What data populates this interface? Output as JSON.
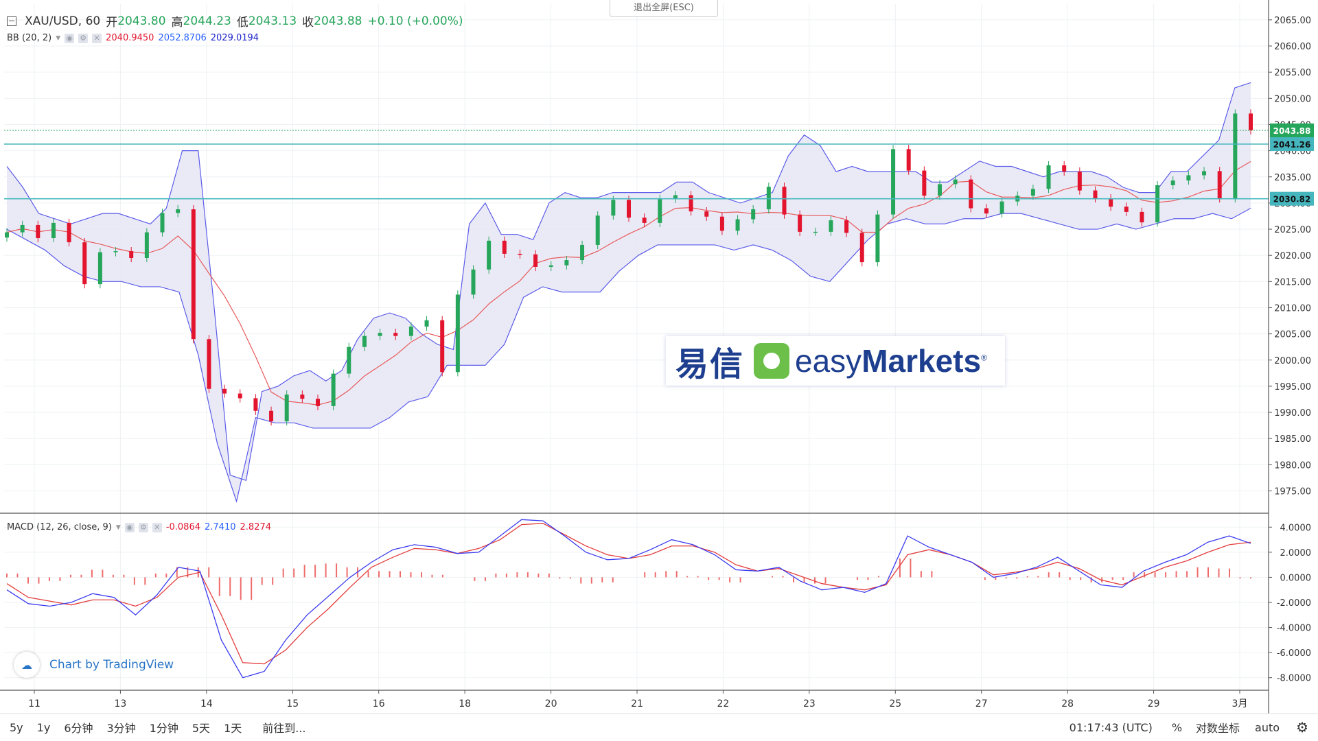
{
  "symbol": "XAU/USD, 60",
  "ohlc": {
    "open_label": "开",
    "open": "2043.80",
    "high_label": "高",
    "high": "2044.23",
    "low_label": "低",
    "low": "2043.13",
    "close_label": "收",
    "close": "2043.88",
    "change": "+0.10 (+0.00%)"
  },
  "bb": {
    "label": "BB (20, 2)",
    "basis": "2040.9450",
    "upper": "2052.8706",
    "lower": "2029.0194"
  },
  "macd": {
    "label": "MACD (12, 26, close, 9)",
    "hist": "-0.0864",
    "macd": "2.7410",
    "signal": "2.8274"
  },
  "esc_button": "退出全屏(ESC)",
  "logo": {
    "cn": "易信",
    "en_light": "easy",
    "en_bold": "Markets",
    "reg": "®"
  },
  "brand": "Chart by TradingView",
  "bottom": {
    "timeframes": [
      "5y",
      "1y",
      "6分钟",
      "3分钟",
      "1分钟",
      "5天",
      "1天"
    ],
    "goto": "前往到...",
    "time": "01:17:43 (UTC)",
    "percent": "%",
    "log": "对数坐标",
    "auto": "auto"
  },
  "colors": {
    "up": "#26a65b",
    "down": "#e3152e",
    "band_fill": "#e6e6f6",
    "band_line": "#5b5bea",
    "basis_line": "#e85a5a",
    "hline": "#46b6be",
    "macd_line": "#3b3bf0",
    "signal_line": "#e33b3b"
  },
  "chart_data": [
    {
      "type": "candlestick",
      "title": "XAU/USD, 60",
      "x_ticks": [
        "11",
        "13",
        "14",
        "15",
        "16",
        "18",
        "20",
        "21",
        "22",
        "23",
        "25",
        "27",
        "28",
        "29",
        "3月"
      ],
      "y_ticks": [
        "1975.00",
        "1980.00",
        "1985.00",
        "1990.00",
        "1995.00",
        "2000.00",
        "2005.00",
        "2010.00",
        "2015.00",
        "2020.00",
        "2025.00",
        "2030.00",
        "2035.00",
        "2040.00",
        "2045.00",
        "2050.00",
        "2055.00",
        "2060.00",
        "2065.00"
      ],
      "ylim": [
        1971,
        2068
      ],
      "last_price": "2043.88",
      "hlines": [
        {
          "label": "2041.26",
          "value": 2041.26
        },
        {
          "label": "2030.82",
          "value": 2030.82
        }
      ],
      "close_series": [
        2024.4,
        2025.8,
        2023.3,
        2026.2,
        2022.5,
        2014.5,
        2020.6,
        2020.8,
        2019.5,
        2024.4,
        2028.1,
        2028.8,
        2004,
        1994.5,
        1993.6,
        1992.7,
        1990.3,
        1988.3,
        1993.4,
        1992.6,
        1991.2,
        1997.4,
        2002.5,
        2004.6,
        2005.2,
        2004.6,
        2006.4,
        2007.6,
        1997.7,
        2012.5,
        2017.3,
        2022.8,
        2020.3,
        2020.2,
        2017.8,
        2018.1,
        2019.1,
        2022,
        2027.6,
        2030.6,
        2027.2,
        2026.2,
        2030.8,
        2031.5,
        2028.4,
        2027.4,
        2024.7,
        2026.9,
        2028.8,
        2033.1,
        2027.8,
        2024.5,
        2024.5,
        2026.7,
        2024.3,
        2018.7,
        2027.8,
        2040.3,
        2036.2,
        2031.4,
        2033.6,
        2034.5,
        2029,
        2028,
        2030.3,
        2031.4,
        2032.7,
        2037.2,
        2036,
        2032.4,
        2030.9,
        2029.3,
        2028.3,
        2026.3,
        2033.4,
        2034.3,
        2035.3,
        2036.1,
        2030.9,
        2047.1,
        2043.9
      ],
      "bb_upper": [
        2037,
        2033,
        2028,
        2027,
        2026,
        2027,
        2028,
        2028,
        2027,
        2026,
        2029,
        2040,
        2040,
        2010,
        1978,
        1977,
        1994,
        1995,
        1997,
        1998,
        1996,
        1998,
        2004,
        2008,
        2009,
        2008,
        2005,
        2003,
        2002,
        2026,
        2030,
        2024,
        2024,
        2023,
        2030,
        2032,
        2031,
        2031,
        2032,
        2032,
        2032,
        2032,
        2034,
        2034,
        2032,
        2031,
        2030,
        2031,
        2032,
        2039,
        2043,
        2041,
        2036,
        2037,
        2036,
        2036,
        2036,
        2036,
        2034,
        2034,
        2036,
        2038,
        2037,
        2037,
        2036,
        2035,
        2036,
        2036,
        2036,
        2035,
        2033,
        2032,
        2032,
        2036,
        2036,
        2039,
        2042,
        2052,
        2053
      ],
      "bb_lower": [
        2025,
        2023,
        2021,
        2018,
        2016,
        2015,
        2015,
        2014,
        2014,
        2013,
        2001,
        1984,
        1973,
        1989,
        1988,
        1988,
        1987,
        1987,
        1987,
        1987,
        1989,
        1992,
        1993,
        1999,
        1999,
        1999,
        2003,
        2012,
        2014,
        2013,
        2013,
        2013,
        2017,
        2020,
        2022,
        2022,
        2022,
        2022,
        2021,
        2022,
        2021,
        2019,
        2016,
        2015,
        2019,
        2023,
        2026,
        2027,
        2026,
        2026,
        2027,
        2027,
        2028,
        2028,
        2027,
        2026,
        2025,
        2025,
        2026,
        2025,
        2026,
        2027,
        2027,
        2028,
        2027,
        2029
      ]
    },
    {
      "type": "line",
      "title": "MACD (12, 26, close, 9)",
      "y_ticks": [
        "-8.0000",
        "-6.0000",
        "-4.0000",
        "-2.0000",
        "0.0000",
        "2.0000",
        "4.0000"
      ],
      "ylim": [
        -9,
        5
      ],
      "series": [
        {
          "name": "MACD",
          "values": [
            -1,
            -2.1,
            -2.3,
            -2.0,
            -1.3,
            -1.6,
            -3.0,
            -1.4,
            0.8,
            0.5,
            -5.0,
            -8.0,
            -7.5,
            -5,
            -3,
            -1.5,
            0,
            1.2,
            2.2,
            2.6,
            2.4,
            1.9,
            2.0,
            3.3,
            4.6,
            4.5,
            3.3,
            2.0,
            1.4,
            1.5,
            2.2,
            3.0,
            2.6,
            1.8,
            0.6,
            0.5,
            0.8,
            -0.3,
            -1.0,
            -0.8,
            -1.2,
            -0.5,
            3.3,
            2.4,
            1.8,
            1.2,
            0,
            0.3,
            0.8,
            1.6,
            0.5,
            -0.6,
            -0.8,
            0.5,
            1.2,
            1.8,
            2.8,
            3.3,
            2.7
          ]
        },
        {
          "name": "Signal",
          "values": [
            -0.5,
            -1.6,
            -1.9,
            -2.2,
            -1.8,
            -1.8,
            -2.3,
            -1.6,
            0,
            0.4,
            -3.0,
            -6.8,
            -6.9,
            -5.8,
            -4.0,
            -2.5,
            -0.8,
            0.8,
            1.6,
            2.3,
            2.2,
            1.9,
            2.3,
            3.0,
            4.2,
            4.3,
            3.4,
            2.5,
            1.8,
            1.5,
            1.8,
            2.5,
            2.5,
            2.0,
            1.0,
            0.5,
            0.7,
            0.1,
            -0.5,
            -0.8,
            -1.0,
            -0.6,
            1.8,
            2.2,
            1.8,
            1.2,
            0.2,
            0.4,
            0.7,
            1.2,
            0.7,
            -0.2,
            -0.6,
            0.1,
            0.8,
            1.3,
            2.0,
            2.6,
            2.8
          ]
        },
        {
          "name": "Histogram",
          "values": [
            0.3,
            -0.5,
            -0.3,
            0.2,
            0.6,
            0.2,
            -0.6,
            0.3,
            0.8,
            0.8,
            -1.5,
            -1.8,
            -0.6,
            0.7,
            1.0,
            1.1,
            0.8,
            0.5,
            0.5,
            0.4,
            0.2,
            0.0,
            -0.3,
            0.3,
            0.4,
            0.3,
            -0.1,
            -0.5,
            -0.4,
            0.0,
            0.4,
            0.5,
            0.1,
            -0.2,
            -0.4,
            0.0,
            0.1,
            -0.4,
            -0.5,
            0.0,
            -0.2,
            0.1,
            1.5,
            0.5,
            0.0,
            0.0,
            -0.2,
            -0.1,
            0.1,
            0.4,
            -0.2,
            -0.4,
            -0.2,
            0.4,
            0.4,
            0.5,
            0.8,
            0.7,
            -0.1
          ]
        }
      ]
    }
  ]
}
